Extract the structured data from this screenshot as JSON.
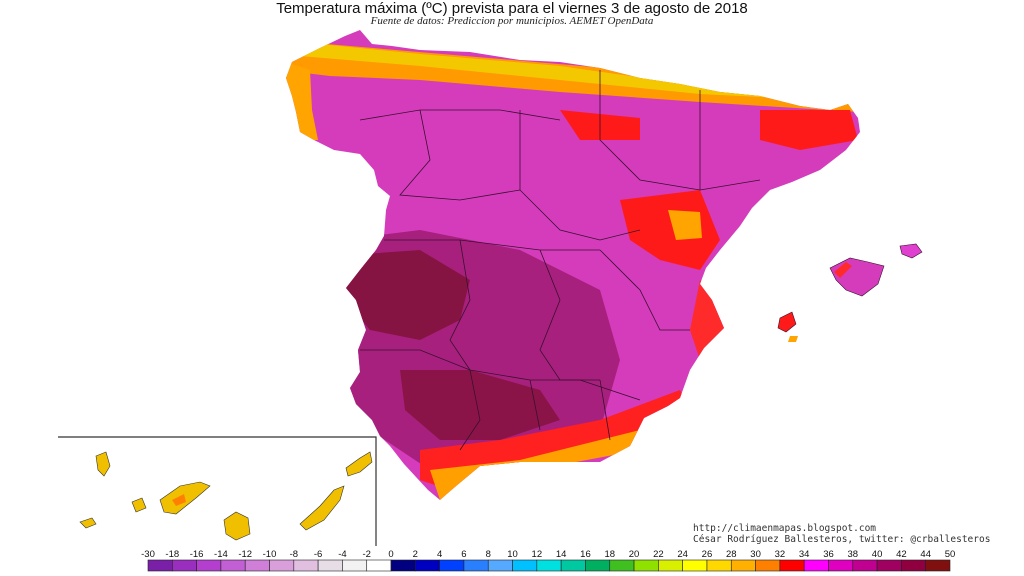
{
  "title": "Temperatura máxima (ºC) prevista para el viernes 3 de agosto de 2018",
  "subtitle": "Fuente de datos: Prediccion por municipios. AEMET OpenData",
  "credits": {
    "line1": "http://climaenmapas.blogspot.com",
    "line2": "César Rodríguez Ballesteros, twitter: @crballesteros"
  },
  "legend": {
    "unit": "ºC",
    "ticks": [
      "-30",
      "-18",
      "-16",
      "-14",
      "-12",
      "-10",
      "-8",
      "-6",
      "-4",
      "-2",
      "0",
      "2",
      "4",
      "6",
      "8",
      "10",
      "12",
      "14",
      "16",
      "18",
      "20",
      "22",
      "24",
      "26",
      "28",
      "30",
      "32",
      "34",
      "36",
      "38",
      "40",
      "42",
      "44",
      "50"
    ],
    "colors": [
      "#7a1fa8",
      "#9a2fbf",
      "#b43fcf",
      "#c25fd4",
      "#cf7fd8",
      "#d89fda",
      "#e0bfe0",
      "#e6dde6",
      "#f2f2f2",
      "#ffffff",
      "#000080",
      "#0000c0",
      "#0040ff",
      "#2a7fff",
      "#55aaff",
      "#00c0ff",
      "#00e0e0",
      "#00c8a0",
      "#00b060",
      "#40c020",
      "#90e000",
      "#d8f000",
      "#ffff00",
      "#ffd800",
      "#ffb000",
      "#ff8000",
      "#ff0000",
      "#ff00ff",
      "#e000c0",
      "#c00090",
      "#a00060",
      "#900040",
      "#801010"
    ]
  },
  "map_colors": {
    "hot_magenta": "#e040d0",
    "very_hot": "#b0208a",
    "extreme": "#8a1040",
    "red": "#ff1010",
    "orange": "#ffa000",
    "yellow": "#f0d000"
  }
}
